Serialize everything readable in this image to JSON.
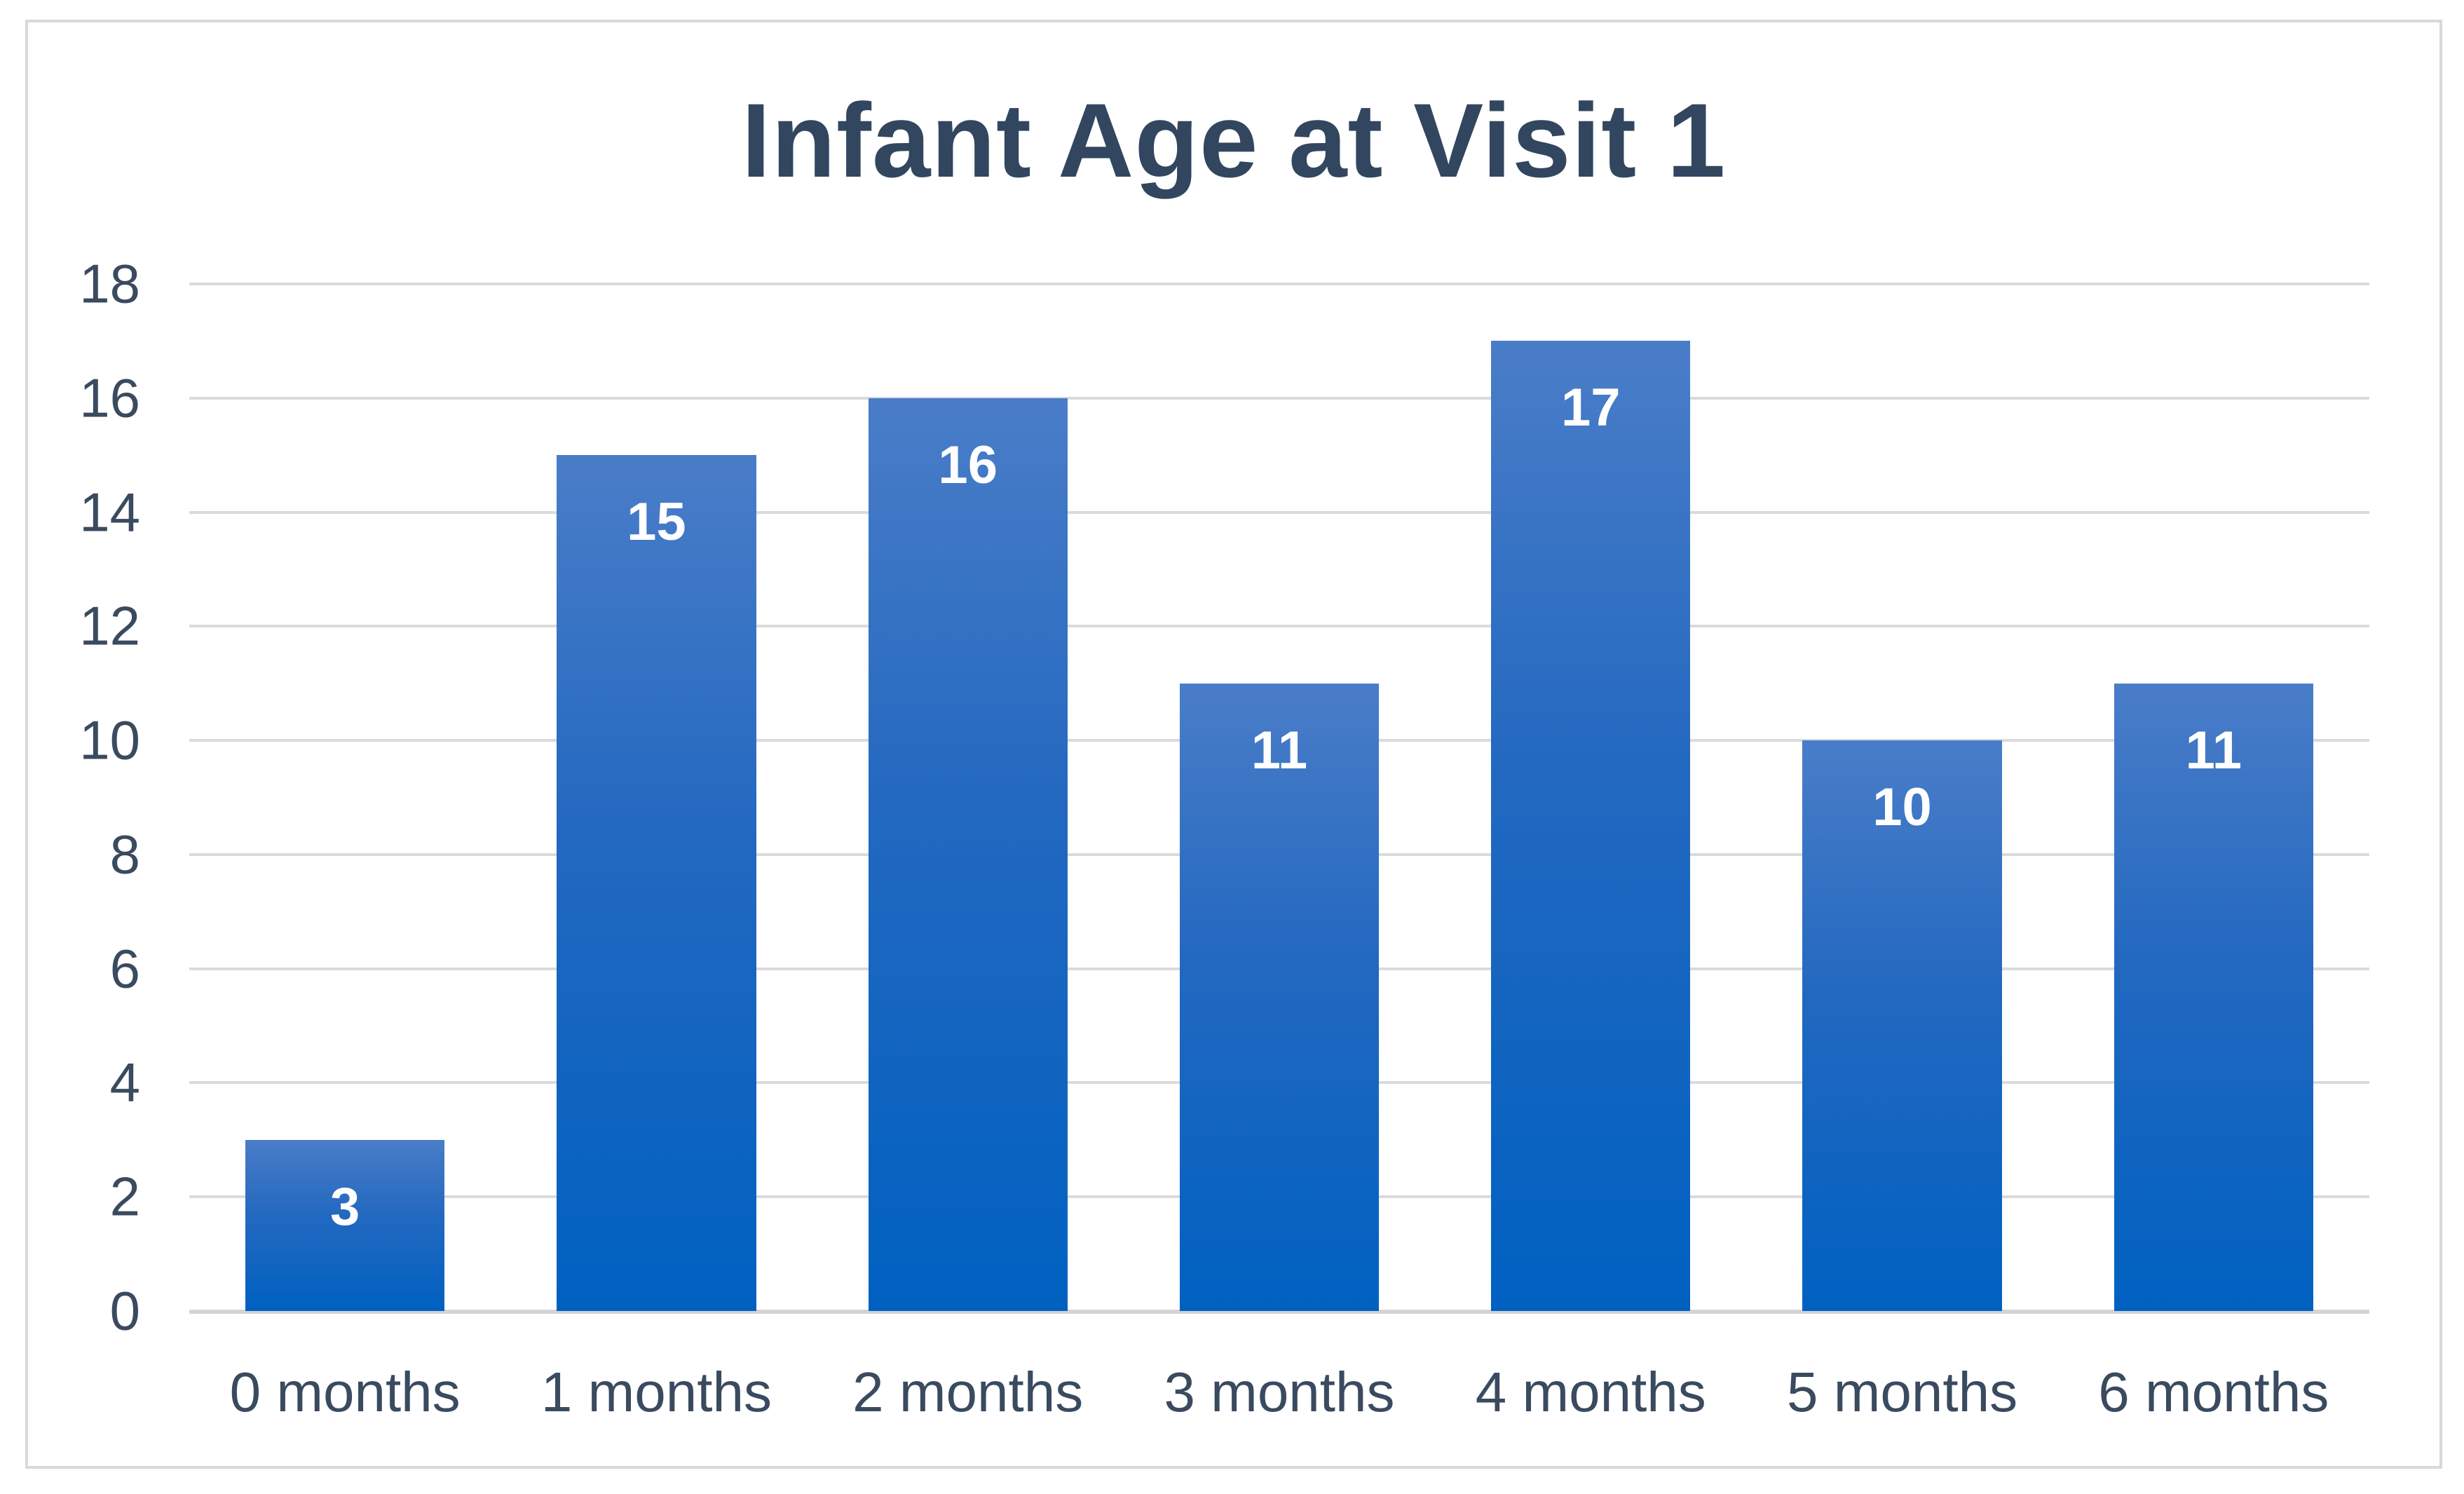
{
  "chart_data": {
    "type": "bar",
    "title": "Infant Age at Visit 1",
    "categories": [
      "0 months",
      "1 months",
      "2 months",
      "3 months",
      "4 months",
      "5 months",
      "6 months"
    ],
    "values": [
      3,
      15,
      16,
      11,
      17,
      10,
      11
    ],
    "xlabel": "",
    "ylabel": "",
    "ylim": [
      0,
      18
    ],
    "yticks": [
      0,
      2,
      4,
      6,
      8,
      10,
      12,
      14,
      16,
      18
    ],
    "grid": true,
    "legend_position": "none",
    "data_labels": true,
    "colors": {
      "bar_gradient_top": "#4a7dc8",
      "bar_gradient_bottom": "#0061c1",
      "title_text": "#32465f",
      "axis_text": "#3a4a5f",
      "gridline": "#dadade",
      "baseline": "#d4d4d6",
      "data_label_text": "#ffffff",
      "frame_border": "#d9d9d9",
      "background": "#ffffff"
    }
  }
}
